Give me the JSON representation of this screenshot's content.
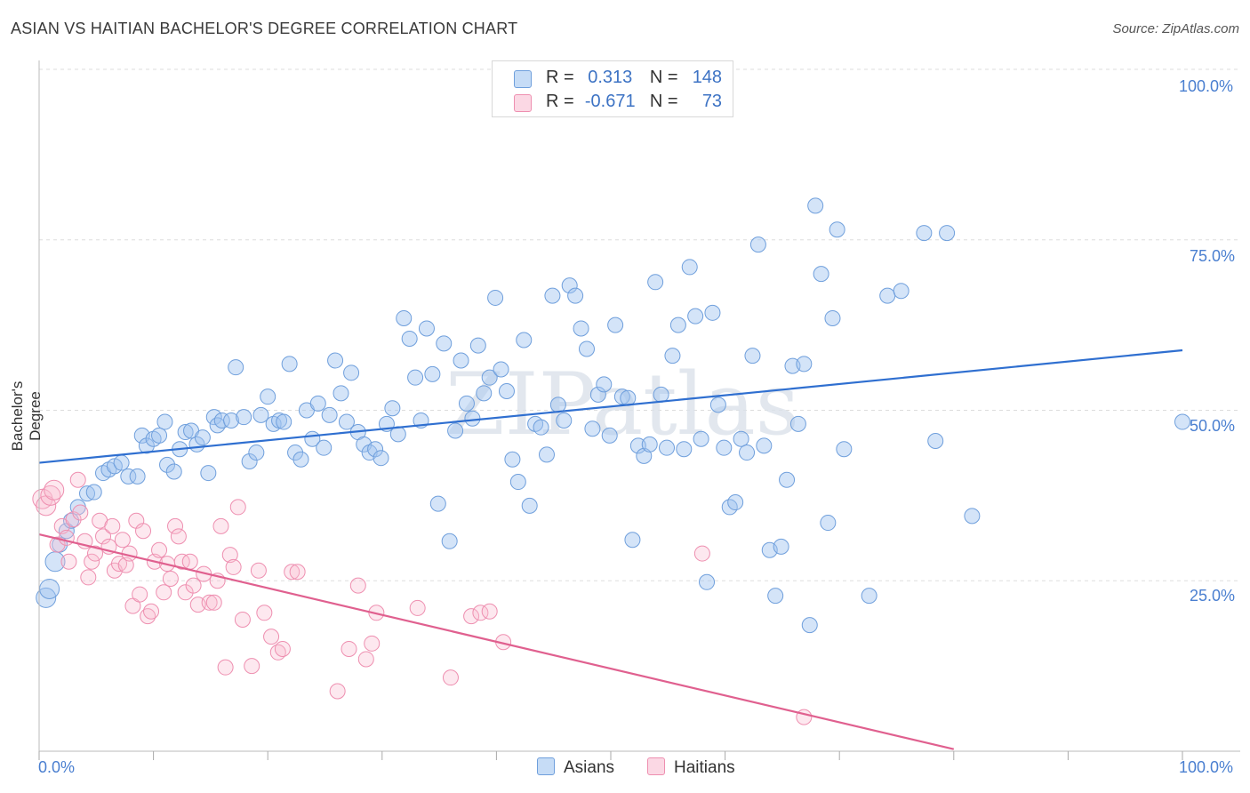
{
  "title": "ASIAN VS HAITIAN BACHELOR'S DEGREE CORRELATION CHART",
  "source": "Source: ZipAtlas.com",
  "watermark": "ZIPatlas",
  "colors": {
    "asian_fill": "rgba(160,196,240,0.45)",
    "asian_stroke": "#6f9fdc",
    "asian_line": "#2f6fd0",
    "haitian_fill": "rgba(248,190,210,0.35)",
    "haitian_stroke": "#ee8fb0",
    "haitian_line": "#e0608f",
    "tick_label": "#4a7fd0",
    "grid": "#dddddd"
  },
  "legend": {
    "rows": [
      {
        "r_label": "R =",
        "r_value": "0.313",
        "n_label": "N =",
        "n_value": "148"
      },
      {
        "r_label": "R =",
        "r_value": "-0.671",
        "n_label": "N =",
        "n_value": "73"
      }
    ]
  },
  "bottom_legend": {
    "asians": "Asians",
    "haitians": "Haitians"
  },
  "chart_data": {
    "type": "scatter",
    "title": "ASIAN VS HAITIAN BACHELOR'S DEGREE CORRELATION CHART",
    "xlabel": "",
    "ylabel": "Bachelor's Degree",
    "xlim": [
      0,
      100
    ],
    "ylim": [
      0,
      100
    ],
    "x_tick_labels": [
      "0.0%",
      "100.0%"
    ],
    "y_ticks": [
      25,
      50,
      75,
      100
    ],
    "y_tick_labels": [
      "25.0%",
      "50.0%",
      "75.0%",
      "100.0%"
    ],
    "grid": true,
    "series": [
      {
        "name": "Asians",
        "r": 0.313,
        "n": 148,
        "trend": {
          "x": [
            0,
            100
          ],
          "y": [
            42.3,
            58.8
          ]
        },
        "points": [
          [
            0.6,
            22.5
          ],
          [
            0.9,
            23.8
          ],
          [
            1.4,
            27.8
          ],
          [
            1.8,
            30.3
          ],
          [
            2.4,
            32.3
          ],
          [
            2.8,
            33.8
          ],
          [
            3.4,
            35.8
          ],
          [
            4.2,
            37.8
          ],
          [
            4.8,
            38.0
          ],
          [
            5.6,
            40.8
          ],
          [
            6.1,
            41.3
          ],
          [
            6.6,
            41.8
          ],
          [
            7.2,
            42.3
          ],
          [
            7.8,
            40.3
          ],
          [
            8.6,
            40.3
          ],
          [
            9.0,
            46.3
          ],
          [
            9.4,
            44.8
          ],
          [
            10.0,
            45.8
          ],
          [
            10.5,
            46.3
          ],
          [
            11.0,
            48.3
          ],
          [
            11.2,
            42.0
          ],
          [
            11.8,
            41.0
          ],
          [
            12.3,
            44.3
          ],
          [
            12.8,
            46.8
          ],
          [
            13.3,
            47.0
          ],
          [
            13.8,
            45.0
          ],
          [
            14.3,
            46.0
          ],
          [
            14.8,
            40.8
          ],
          [
            15.3,
            49.0
          ],
          [
            15.6,
            47.8
          ],
          [
            16.0,
            48.5
          ],
          [
            16.8,
            48.5
          ],
          [
            17.2,
            56.3
          ],
          [
            17.9,
            49.0
          ],
          [
            18.4,
            42.5
          ],
          [
            19.0,
            43.8
          ],
          [
            19.4,
            49.3
          ],
          [
            20.0,
            52.0
          ],
          [
            20.5,
            48.0
          ],
          [
            21.0,
            48.5
          ],
          [
            21.4,
            48.3
          ],
          [
            21.9,
            56.8
          ],
          [
            22.4,
            43.8
          ],
          [
            22.9,
            42.8
          ],
          [
            23.4,
            50.0
          ],
          [
            23.9,
            45.8
          ],
          [
            24.4,
            51.0
          ],
          [
            24.9,
            44.5
          ],
          [
            25.4,
            49.3
          ],
          [
            25.9,
            57.3
          ],
          [
            26.4,
            52.5
          ],
          [
            26.9,
            48.3
          ],
          [
            27.3,
            55.5
          ],
          [
            27.9,
            46.8
          ],
          [
            28.4,
            45.0
          ],
          [
            28.9,
            43.8
          ],
          [
            29.4,
            44.3
          ],
          [
            29.9,
            43.0
          ],
          [
            30.4,
            48.0
          ],
          [
            30.9,
            50.3
          ],
          [
            31.4,
            46.5
          ],
          [
            31.9,
            63.5
          ],
          [
            32.4,
            60.5
          ],
          [
            32.9,
            54.8
          ],
          [
            33.4,
            48.5
          ],
          [
            33.9,
            62.0
          ],
          [
            34.4,
            55.3
          ],
          [
            34.9,
            36.3
          ],
          [
            35.4,
            59.8
          ],
          [
            35.9,
            30.8
          ],
          [
            36.4,
            47.0
          ],
          [
            36.9,
            57.3
          ],
          [
            37.4,
            51.0
          ],
          [
            37.9,
            48.8
          ],
          [
            38.4,
            59.5
          ],
          [
            38.9,
            52.5
          ],
          [
            39.4,
            54.8
          ],
          [
            39.9,
            66.5
          ],
          [
            40.4,
            56.0
          ],
          [
            40.9,
            52.8
          ],
          [
            41.4,
            42.8
          ],
          [
            41.9,
            39.5
          ],
          [
            42.4,
            60.3
          ],
          [
            42.9,
            36.0
          ],
          [
            43.4,
            48.0
          ],
          [
            43.9,
            47.5
          ],
          [
            44.4,
            43.5
          ],
          [
            44.9,
            66.8
          ],
          [
            45.4,
            50.8
          ],
          [
            45.9,
            48.5
          ],
          [
            46.4,
            68.3
          ],
          [
            46.9,
            66.8
          ],
          [
            47.4,
            62.0
          ],
          [
            47.9,
            59.0
          ],
          [
            48.4,
            47.3
          ],
          [
            48.9,
            52.3
          ],
          [
            49.4,
            53.8
          ],
          [
            49.9,
            46.3
          ],
          [
            50.4,
            62.5
          ],
          [
            51.0,
            52.0
          ],
          [
            51.5,
            51.8
          ],
          [
            51.9,
            31.0
          ],
          [
            52.4,
            44.8
          ],
          [
            52.9,
            43.3
          ],
          [
            53.4,
            45.0
          ],
          [
            53.9,
            68.8
          ],
          [
            54.4,
            52.3
          ],
          [
            54.9,
            44.5
          ],
          [
            55.4,
            58.0
          ],
          [
            55.9,
            62.5
          ],
          [
            56.4,
            44.3
          ],
          [
            56.9,
            71.0
          ],
          [
            57.4,
            63.8
          ],
          [
            57.9,
            45.8
          ],
          [
            58.4,
            24.8
          ],
          [
            58.9,
            64.3
          ],
          [
            59.4,
            50.8
          ],
          [
            59.9,
            44.5
          ],
          [
            60.4,
            35.8
          ],
          [
            60.9,
            36.5
          ],
          [
            61.4,
            45.8
          ],
          [
            61.9,
            43.8
          ],
          [
            62.4,
            58.0
          ],
          [
            62.9,
            74.3
          ],
          [
            63.4,
            44.8
          ],
          [
            63.9,
            29.5
          ],
          [
            64.4,
            22.8
          ],
          [
            64.9,
            30.0
          ],
          [
            65.4,
            39.8
          ],
          [
            65.9,
            56.5
          ],
          [
            66.4,
            48.0
          ],
          [
            66.9,
            56.8
          ],
          [
            67.4,
            18.5
          ],
          [
            67.9,
            80.0
          ],
          [
            68.4,
            70.0
          ],
          [
            69.0,
            33.5
          ],
          [
            69.4,
            63.5
          ],
          [
            69.8,
            76.5
          ],
          [
            70.4,
            44.3
          ],
          [
            72.6,
            22.8
          ],
          [
            74.2,
            66.8
          ],
          [
            75.4,
            67.5
          ],
          [
            77.4,
            76.0
          ],
          [
            78.4,
            45.5
          ],
          [
            79.4,
            76.0
          ],
          [
            81.6,
            34.5
          ],
          [
            100.0,
            48.3
          ]
        ]
      },
      {
        "name": "Haitians",
        "r": -0.671,
        "n": 73,
        "trend": {
          "x": [
            0,
            80
          ],
          "y": [
            31.8,
            0.3
          ]
        },
        "points": [
          [
            0.3,
            37.0
          ],
          [
            0.6,
            36.0
          ],
          [
            1.0,
            37.5
          ],
          [
            1.3,
            38.3
          ],
          [
            1.6,
            30.3
          ],
          [
            2.0,
            33.0
          ],
          [
            2.4,
            31.3
          ],
          [
            2.6,
            27.8
          ],
          [
            3.0,
            34.0
          ],
          [
            3.4,
            39.8
          ],
          [
            3.6,
            35.0
          ],
          [
            4.0,
            30.8
          ],
          [
            4.3,
            25.5
          ],
          [
            4.6,
            27.8
          ],
          [
            4.9,
            29.0
          ],
          [
            5.3,
            33.8
          ],
          [
            5.6,
            31.5
          ],
          [
            6.1,
            30.0
          ],
          [
            6.4,
            33.0
          ],
          [
            6.6,
            26.5
          ],
          [
            7.0,
            27.5
          ],
          [
            7.3,
            31.0
          ],
          [
            7.6,
            27.3
          ],
          [
            7.9,
            29.0
          ],
          [
            8.2,
            21.3
          ],
          [
            8.5,
            33.8
          ],
          [
            8.8,
            23.0
          ],
          [
            9.1,
            32.3
          ],
          [
            9.5,
            19.8
          ],
          [
            9.8,
            20.5
          ],
          [
            10.1,
            27.8
          ],
          [
            10.5,
            29.5
          ],
          [
            10.9,
            23.3
          ],
          [
            11.2,
            27.5
          ],
          [
            11.5,
            25.3
          ],
          [
            11.9,
            33.0
          ],
          [
            12.2,
            31.5
          ],
          [
            12.5,
            27.8
          ],
          [
            12.8,
            23.3
          ],
          [
            13.2,
            27.8
          ],
          [
            13.5,
            24.3
          ],
          [
            13.9,
            21.5
          ],
          [
            14.4,
            26.0
          ],
          [
            14.9,
            21.8
          ],
          [
            15.3,
            21.8
          ],
          [
            15.6,
            25.0
          ],
          [
            15.9,
            33.0
          ],
          [
            16.3,
            12.3
          ],
          [
            16.7,
            28.8
          ],
          [
            17.0,
            27.0
          ],
          [
            17.4,
            35.8
          ],
          [
            17.8,
            19.3
          ],
          [
            18.6,
            12.5
          ],
          [
            19.2,
            26.5
          ],
          [
            19.7,
            20.3
          ],
          [
            20.3,
            16.8
          ],
          [
            20.9,
            14.5
          ],
          [
            21.3,
            15.0
          ],
          [
            22.1,
            26.3
          ],
          [
            22.6,
            26.3
          ],
          [
            26.1,
            8.8
          ],
          [
            27.1,
            15.0
          ],
          [
            27.9,
            24.3
          ],
          [
            28.6,
            13.5
          ],
          [
            29.1,
            15.8
          ],
          [
            29.5,
            20.3
          ],
          [
            33.1,
            21.0
          ],
          [
            36.0,
            10.8
          ],
          [
            37.8,
            19.8
          ],
          [
            38.6,
            20.3
          ],
          [
            39.4,
            20.5
          ],
          [
            40.6,
            16.0
          ],
          [
            58.0,
            29.0
          ],
          [
            66.9,
            5.0
          ]
        ]
      }
    ]
  }
}
